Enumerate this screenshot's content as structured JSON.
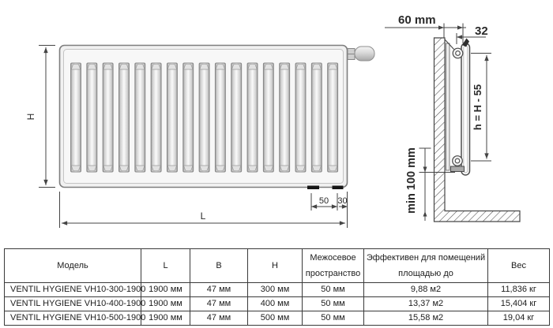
{
  "diagram": {
    "front_view": {
      "slot_count": 17,
      "height_label": "H",
      "length_label": "L",
      "bottom_dim_50": "50",
      "bottom_dim_30": "30"
    },
    "side_view": {
      "wall_offset_label": "60 mm",
      "top_dim_label": "32",
      "bracket_height_label": "h = H - 55",
      "floor_clearance_label": "min 100 mm"
    }
  },
  "table": {
    "headers": [
      "Модель",
      "L",
      "B",
      "H",
      "Межосевое пространство",
      "Эффективен для помещений площадью до",
      "Вес"
    ],
    "rows": [
      [
        "VENTIL HYGIENE VH10-300-1900",
        "1900 мм",
        "47 мм",
        "300 мм",
        "50 мм",
        "9,88 м2",
        "11,836 кг"
      ],
      [
        "VENTIL HYGIENE VH10-400-1900",
        "1900 мм",
        "47 мм",
        "400 мм",
        "50 мм",
        "13,37 м2",
        "15,404 кг"
      ],
      [
        "VENTIL HYGIENE VH10-500-1900",
        "1900 мм",
        "47 мм",
        "500 мм",
        "50 мм",
        "15,58 м2",
        "19,04 кг"
      ]
    ]
  },
  "colors": {
    "line": "#454545",
    "table_border": "#3a3a3a",
    "radiator_fill": "#f1f1f1",
    "slot_edge": "#8e8e8e"
  }
}
